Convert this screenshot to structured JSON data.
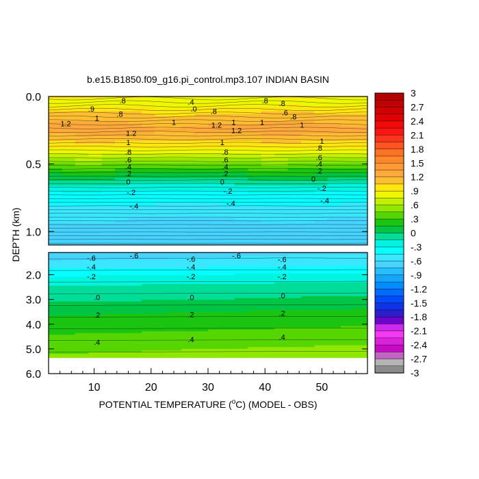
{
  "chart_data": {
    "type": "heatmap",
    "title": "b.e15.B1850.f09_g16.pi_control.mp3.107 INDIAN BASIN",
    "xlabel_prefix": "POTENTIAL TEMPERATURE (",
    "xlabel_degree": "o",
    "xlabel_suffix": "C) (MODEL - OBS)",
    "ylabel": "DEPTH (km)",
    "xlim": [
      2,
      58
    ],
    "x_ticks": [
      10,
      20,
      30,
      40,
      50
    ],
    "upper_panel": {
      "ylim": [
        0.0,
        1.1
      ],
      "y_ticks": [
        "0.0",
        "0.5",
        "1.0"
      ],
      "y_tick_values": [
        0.0,
        0.5,
        1.0
      ]
    },
    "lower_panel": {
      "ylim": [
        1.1,
        6.0
      ],
      "data_bottom": 5.35,
      "y_ticks": [
        "2.0",
        "3.0",
        "4.0",
        "5.0",
        "6.0"
      ],
      "y_tick_values": [
        2.0,
        3.0,
        4.0,
        5.0,
        6.0
      ]
    },
    "colorbar": {
      "range": [
        -3,
        3
      ],
      "interval": 0.15,
      "labels": [
        "3",
        "2.7",
        "2.4",
        "2.1",
        "1.8",
        "1.5",
        "1.2",
        ".9",
        ".6",
        ".3",
        "0",
        "-.3",
        "-.6",
        "-.9",
        "-1.2",
        "-1.5",
        "-1.8",
        "-2.1",
        "-2.4",
        "-2.7",
        "-3"
      ]
    },
    "profile_upper": [
      {
        "depth": 0.0,
        "value": 0.9
      },
      {
        "depth": 0.05,
        "value": 0.8
      },
      {
        "depth": 0.1,
        "value": 1.0
      },
      {
        "depth": 0.15,
        "value": 1.1
      },
      {
        "depth": 0.2,
        "value": 1.2
      },
      {
        "depth": 0.25,
        "value": 1.25
      },
      {
        "depth": 0.3,
        "value": 1.15
      },
      {
        "depth": 0.35,
        "value": 1.0
      },
      {
        "depth": 0.4,
        "value": 0.85
      },
      {
        "depth": 0.45,
        "value": 0.65
      },
      {
        "depth": 0.5,
        "value": 0.45
      },
      {
        "depth": 0.55,
        "value": 0.25
      },
      {
        "depth": 0.6,
        "value": 0.05
      },
      {
        "depth": 0.65,
        "value": -0.15
      },
      {
        "depth": 0.7,
        "value": -0.3
      },
      {
        "depth": 0.8,
        "value": -0.45
      },
      {
        "depth": 0.9,
        "value": -0.6
      },
      {
        "depth": 1.1,
        "value": -0.65
      }
    ],
    "profile_lower": [
      {
        "depth": 1.1,
        "value": -0.65
      },
      {
        "depth": 1.5,
        "value": -0.55
      },
      {
        "depth": 2.0,
        "value": -0.3
      },
      {
        "depth": 2.5,
        "value": -0.1
      },
      {
        "depth": 3.0,
        "value": 0.0
      },
      {
        "depth": 3.5,
        "value": 0.15
      },
      {
        "depth": 4.0,
        "value": 0.25
      },
      {
        "depth": 4.5,
        "value": 0.35
      },
      {
        "depth": 5.0,
        "value": 0.45
      },
      {
        "depth": 5.35,
        "value": 0.5
      }
    ],
    "contour_labels_upper": [
      {
        "x": 15.0,
        "depth": 0.03,
        "text": ".8"
      },
      {
        "x": 27.0,
        "depth": 0.04,
        "text": ".4"
      },
      {
        "x": 40.0,
        "depth": 0.03,
        "text": ".8"
      },
      {
        "x": 43.0,
        "depth": 0.05,
        "text": ".8"
      },
      {
        "x": 9.5,
        "depth": 0.09,
        "text": ".9"
      },
      {
        "x": 27.5,
        "depth": 0.09,
        "text": ".0"
      },
      {
        "x": 31.0,
        "depth": 0.11,
        "text": ".8"
      },
      {
        "x": 14.5,
        "depth": 0.13,
        "text": ".8"
      },
      {
        "x": 43.5,
        "depth": 0.12,
        "text": ".6"
      },
      {
        "x": 45.0,
        "depth": 0.15,
        "text": ".8"
      },
      {
        "x": 5.0,
        "depth": 0.2,
        "text": "1.2"
      },
      {
        "x": 10.5,
        "depth": 0.16,
        "text": "1"
      },
      {
        "x": 24.0,
        "depth": 0.19,
        "text": "1"
      },
      {
        "x": 31.5,
        "depth": 0.21,
        "text": "1.2"
      },
      {
        "x": 34.5,
        "depth": 0.19,
        "text": "1"
      },
      {
        "x": 39.5,
        "depth": 0.19,
        "text": "1"
      },
      {
        "x": 46.5,
        "depth": 0.21,
        "text": "1"
      },
      {
        "x": 16.5,
        "depth": 0.27,
        "text": "1.2"
      },
      {
        "x": 35.0,
        "depth": 0.25,
        "text": "1.2"
      },
      {
        "x": 16.0,
        "depth": 0.34,
        "text": "1"
      },
      {
        "x": 32.5,
        "depth": 0.34,
        "text": "1"
      },
      {
        "x": 50.0,
        "depth": 0.33,
        "text": "1"
      },
      {
        "x": 16.0,
        "depth": 0.41,
        "text": ".8"
      },
      {
        "x": 33.0,
        "depth": 0.41,
        "text": ".8"
      },
      {
        "x": 49.5,
        "depth": 0.38,
        "text": ".8"
      },
      {
        "x": 16.0,
        "depth": 0.47,
        "text": ".6"
      },
      {
        "x": 33.0,
        "depth": 0.47,
        "text": ".6"
      },
      {
        "x": 49.5,
        "depth": 0.45,
        "text": ".6"
      },
      {
        "x": 16.0,
        "depth": 0.52,
        "text": ".4"
      },
      {
        "x": 33.0,
        "depth": 0.52,
        "text": ".4"
      },
      {
        "x": 49.5,
        "depth": 0.5,
        "text": ".4"
      },
      {
        "x": 16.0,
        "depth": 0.57,
        "text": ".2"
      },
      {
        "x": 33.0,
        "depth": 0.57,
        "text": ".2"
      },
      {
        "x": 49.5,
        "depth": 0.55,
        "text": ".2"
      },
      {
        "x": 16.0,
        "depth": 0.63,
        "text": "0"
      },
      {
        "x": 32.5,
        "depth": 0.63,
        "text": "0"
      },
      {
        "x": 48.5,
        "depth": 0.61,
        "text": "0"
      },
      {
        "x": 16.5,
        "depth": 0.71,
        "text": "-.2"
      },
      {
        "x": 33.5,
        "depth": 0.7,
        "text": "-.2"
      },
      {
        "x": 50.0,
        "depth": 0.68,
        "text": "-.2"
      },
      {
        "x": 17.0,
        "depth": 0.81,
        "text": "-.4"
      },
      {
        "x": 34.0,
        "depth": 0.79,
        "text": "-.4"
      },
      {
        "x": 50.5,
        "depth": 0.77,
        "text": "-.4"
      }
    ],
    "contour_labels_lower": [
      {
        "x": 9.5,
        "depth": 1.32,
        "text": "-.6"
      },
      {
        "x": 17.0,
        "depth": 1.22,
        "text": "-.6"
      },
      {
        "x": 27.0,
        "depth": 1.36,
        "text": "-.6"
      },
      {
        "x": 35.0,
        "depth": 1.22,
        "text": "-.6"
      },
      {
        "x": 43.0,
        "depth": 1.38,
        "text": "-.6"
      },
      {
        "x": 9.5,
        "depth": 1.68,
        "text": "-.4"
      },
      {
        "x": 27.0,
        "depth": 1.68,
        "text": "-.4"
      },
      {
        "x": 43.0,
        "depth": 1.68,
        "text": "-.4"
      },
      {
        "x": 9.5,
        "depth": 2.07,
        "text": "-.2"
      },
      {
        "x": 27.0,
        "depth": 2.07,
        "text": "-.2"
      },
      {
        "x": 43.0,
        "depth": 2.07,
        "text": "-.2"
      },
      {
        "x": 10.5,
        "depth": 2.92,
        "text": ".0"
      },
      {
        "x": 27.0,
        "depth": 2.92,
        "text": ".0"
      },
      {
        "x": 43.0,
        "depth": 2.85,
        "text": ".0"
      },
      {
        "x": 10.5,
        "depth": 3.62,
        "text": ".2"
      },
      {
        "x": 27.0,
        "depth": 3.6,
        "text": ".2"
      },
      {
        "x": 43.0,
        "depth": 3.55,
        "text": ".2"
      },
      {
        "x": 10.5,
        "depth": 4.72,
        "text": ".4"
      },
      {
        "x": 27.0,
        "depth": 4.62,
        "text": ".4"
      },
      {
        "x": 43.0,
        "depth": 4.52,
        "text": ".4"
      }
    ]
  }
}
